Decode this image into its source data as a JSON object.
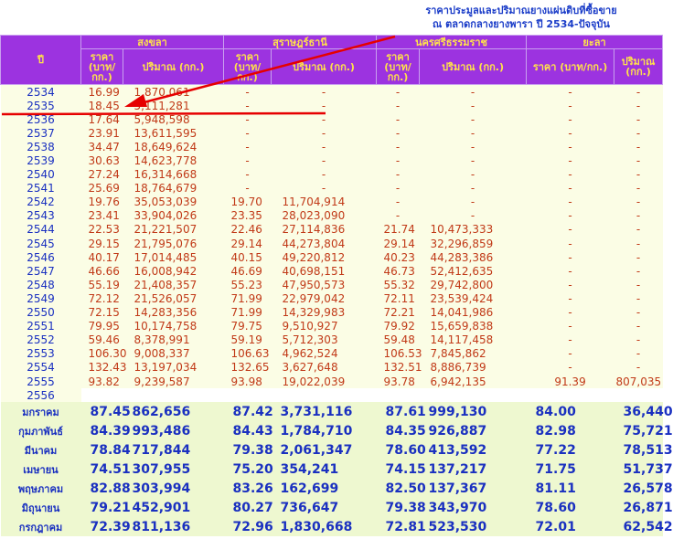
{
  "caption": {
    "line1": "ราคาประมูลและปริมาณยางแผ่นดิบที่ซื้อขาย",
    "line2": "ณ ตลาดกลางยางพารา ปี 2534-ปัจจุบัน"
  },
  "header": {
    "year": "ปี",
    "markets": [
      "สงขลา",
      "สุราษฎร์ธานี",
      "นครศรีธรรมราช",
      "ยะลา"
    ],
    "price_label": "ราคา (บาท/ กก.)",
    "price_label_yala": "ราคา (บาท/กก.)",
    "qty_label": "ปริมาณ (กก.)"
  },
  "years": [
    {
      "y": "2534",
      "v": [
        "16.99",
        "1,870,061",
        "-",
        "-",
        "-",
        "-",
        "-",
        "-"
      ]
    },
    {
      "y": "2535",
      "v": [
        "18.45",
        "5,111,281",
        "-",
        "-",
        "-",
        "-",
        "-",
        "-"
      ]
    },
    {
      "y": "2536",
      "v": [
        "17.64",
        "5,948,598",
        "-",
        "-",
        "-",
        "-",
        "-",
        "-"
      ]
    },
    {
      "y": "2537",
      "v": [
        "23.91",
        "13,611,595",
        "-",
        "-",
        "-",
        "-",
        "-",
        "-"
      ]
    },
    {
      "y": "2538",
      "v": [
        "34.47",
        "18,649,624",
        "-",
        "-",
        "-",
        "-",
        "-",
        "-"
      ]
    },
    {
      "y": "2539",
      "v": [
        "30.63",
        "14,623,778",
        "-",
        "-",
        "-",
        "-",
        "-",
        "-"
      ]
    },
    {
      "y": "2540",
      "v": [
        "27.24",
        "16,314,668",
        "-",
        "-",
        "-",
        "-",
        "-",
        "-"
      ]
    },
    {
      "y": "2541",
      "v": [
        "25.69",
        "18,764,679",
        "-",
        "-",
        "-",
        "-",
        "-",
        "-"
      ]
    },
    {
      "y": "2542",
      "v": [
        "19.76",
        "35,053,039",
        "19.70",
        "11,704,914",
        "-",
        "-",
        "-",
        "-"
      ]
    },
    {
      "y": "2543",
      "v": [
        "23.41",
        "33,904,026",
        "23.35",
        "28,023,090",
        "-",
        "-",
        "-",
        "-"
      ]
    },
    {
      "y": "2544",
      "v": [
        "22.53",
        "21,221,507",
        "22.46",
        "27,114,836",
        "21.74",
        "10,473,333",
        "-",
        "-"
      ]
    },
    {
      "y": "2545",
      "v": [
        "29.15",
        "21,795,076",
        "29.14",
        "44,273,804",
        "29.14",
        "32,296,859",
        "-",
        "-"
      ]
    },
    {
      "y": "2546",
      "v": [
        "40.17",
        "17,014,485",
        "40.15",
        "49,220,812",
        "40.23",
        "44,283,386",
        "-",
        "-"
      ]
    },
    {
      "y": "2547",
      "v": [
        "46.66",
        "16,008,942",
        "46.69",
        "40,698,151",
        "46.73",
        "52,412,635",
        "-",
        "-"
      ]
    },
    {
      "y": "2548",
      "v": [
        "55.19",
        "21,408,357",
        "55.23",
        "47,950,573",
        "55.32",
        "29,742,800",
        "-",
        "-"
      ]
    },
    {
      "y": "2549",
      "v": [
        "72.12",
        "21,526,057",
        "71.99",
        "22,979,042",
        "72.11",
        "23,539,424",
        "-",
        "-"
      ]
    },
    {
      "y": "2550",
      "v": [
        "72.15",
        "14,283,356",
        "71.99",
        "14,329,983",
        "72.21",
        "14,041,986",
        "-",
        "-"
      ]
    },
    {
      "y": "2551",
      "v": [
        "79.95",
        "10,174,758",
        "79.75",
        "9,510,927",
        "79.92",
        "15,659,838",
        "-",
        "-"
      ]
    },
    {
      "y": "2552",
      "v": [
        "59.46",
        "8,378,991",
        "59.19",
        "5,712,303",
        "59.48",
        "14,117,458",
        "-",
        "-"
      ]
    },
    {
      "y": "2553",
      "v": [
        "106.30",
        "9,008,337",
        "106.63",
        "4,962,524",
        "106.53",
        "7,845,862",
        "-",
        "-"
      ]
    },
    {
      "y": "2554",
      "v": [
        "132.43",
        "13,197,034",
        "132.65",
        "3,627,648",
        "132.51",
        "8,886,739",
        "-",
        "-"
      ]
    },
    {
      "y": "2555",
      "v": [
        "93.82",
        "9,239,587",
        "93.98",
        "19,022,039",
        "93.78",
        "6,942,135",
        "91.39",
        "807,035"
      ]
    }
  ],
  "gap_year": "2556",
  "months": [
    {
      "m": "มกราคม",
      "v": [
        "87.45",
        "862,656",
        "87.42",
        "3,731,116",
        "87.61",
        "999,130",
        "84.00",
        "36,440"
      ]
    },
    {
      "m": "กุมภาพันธ์",
      "v": [
        "84.39",
        "993,486",
        "84.43",
        "1,784,710",
        "84.35",
        "926,887",
        "82.98",
        "75,721"
      ]
    },
    {
      "m": "มีนาคม",
      "v": [
        "78.84",
        "717,844",
        "79.38",
        "2,061,347",
        "78.60",
        "413,592",
        "77.22",
        "78,513"
      ]
    },
    {
      "m": "เมษายน",
      "v": [
        "74.51",
        "307,955",
        "75.20",
        "354,241",
        "74.15",
        "137,217",
        "71.75",
        "51,737"
      ]
    },
    {
      "m": "พฤษภาคม",
      "v": [
        "82.88",
        "303,994",
        "83.26",
        "162,699",
        "82.50",
        "137,367",
        "81.11",
        "26,578"
      ]
    },
    {
      "m": "มิถุนายน",
      "v": [
        "79.21",
        "452,901",
        "80.27",
        "736,647",
        "79.38",
        "343,970",
        "78.60",
        "26,871"
      ]
    },
    {
      "m": "กรกฎาคม",
      "v": [
        "72.39",
        "811,136",
        "72.96",
        "1,830,668",
        "72.81",
        "523,530",
        "72.01",
        "62,542"
      ]
    }
  ]
}
